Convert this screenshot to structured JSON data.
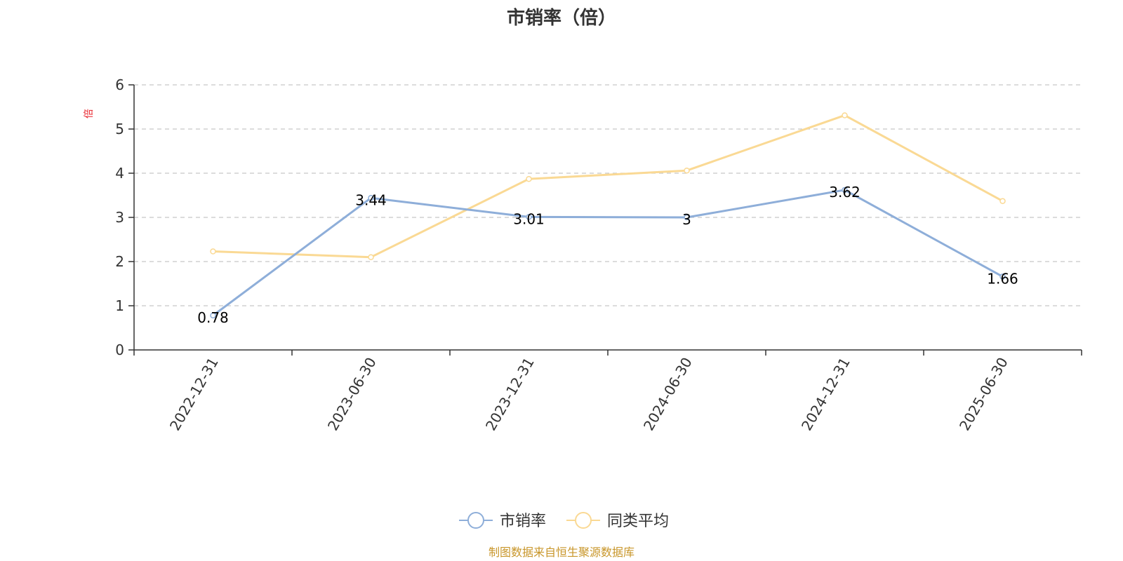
{
  "chart_data": {
    "type": "line",
    "title": "市销率（倍）",
    "ylabel": "倍",
    "ylim": [
      0,
      6
    ],
    "yticks": [
      0,
      1,
      2,
      3,
      4,
      5,
      6
    ],
    "grid": true,
    "legend_position": "bottom",
    "categories": [
      "2022-12-31",
      "2023-06-30",
      "2023-12-31",
      "2024-06-30",
      "2024-12-31",
      "2025-06-30"
    ],
    "series": [
      {
        "name": "市销率",
        "color": "#8eaed9",
        "values": [
          0.78,
          3.44,
          3.01,
          3.0,
          3.62,
          1.66
        ],
        "labels": [
          "0.78",
          "3.44",
          "3.01",
          "3",
          "3.62",
          "1.66"
        ]
      },
      {
        "name": "同类平均",
        "color": "#fad994",
        "values": [
          2.23,
          2.1,
          3.87,
          4.06,
          5.31,
          3.37
        ],
        "labels": null
      }
    ],
    "source": "制图数据来自恒生聚源数据库"
  }
}
